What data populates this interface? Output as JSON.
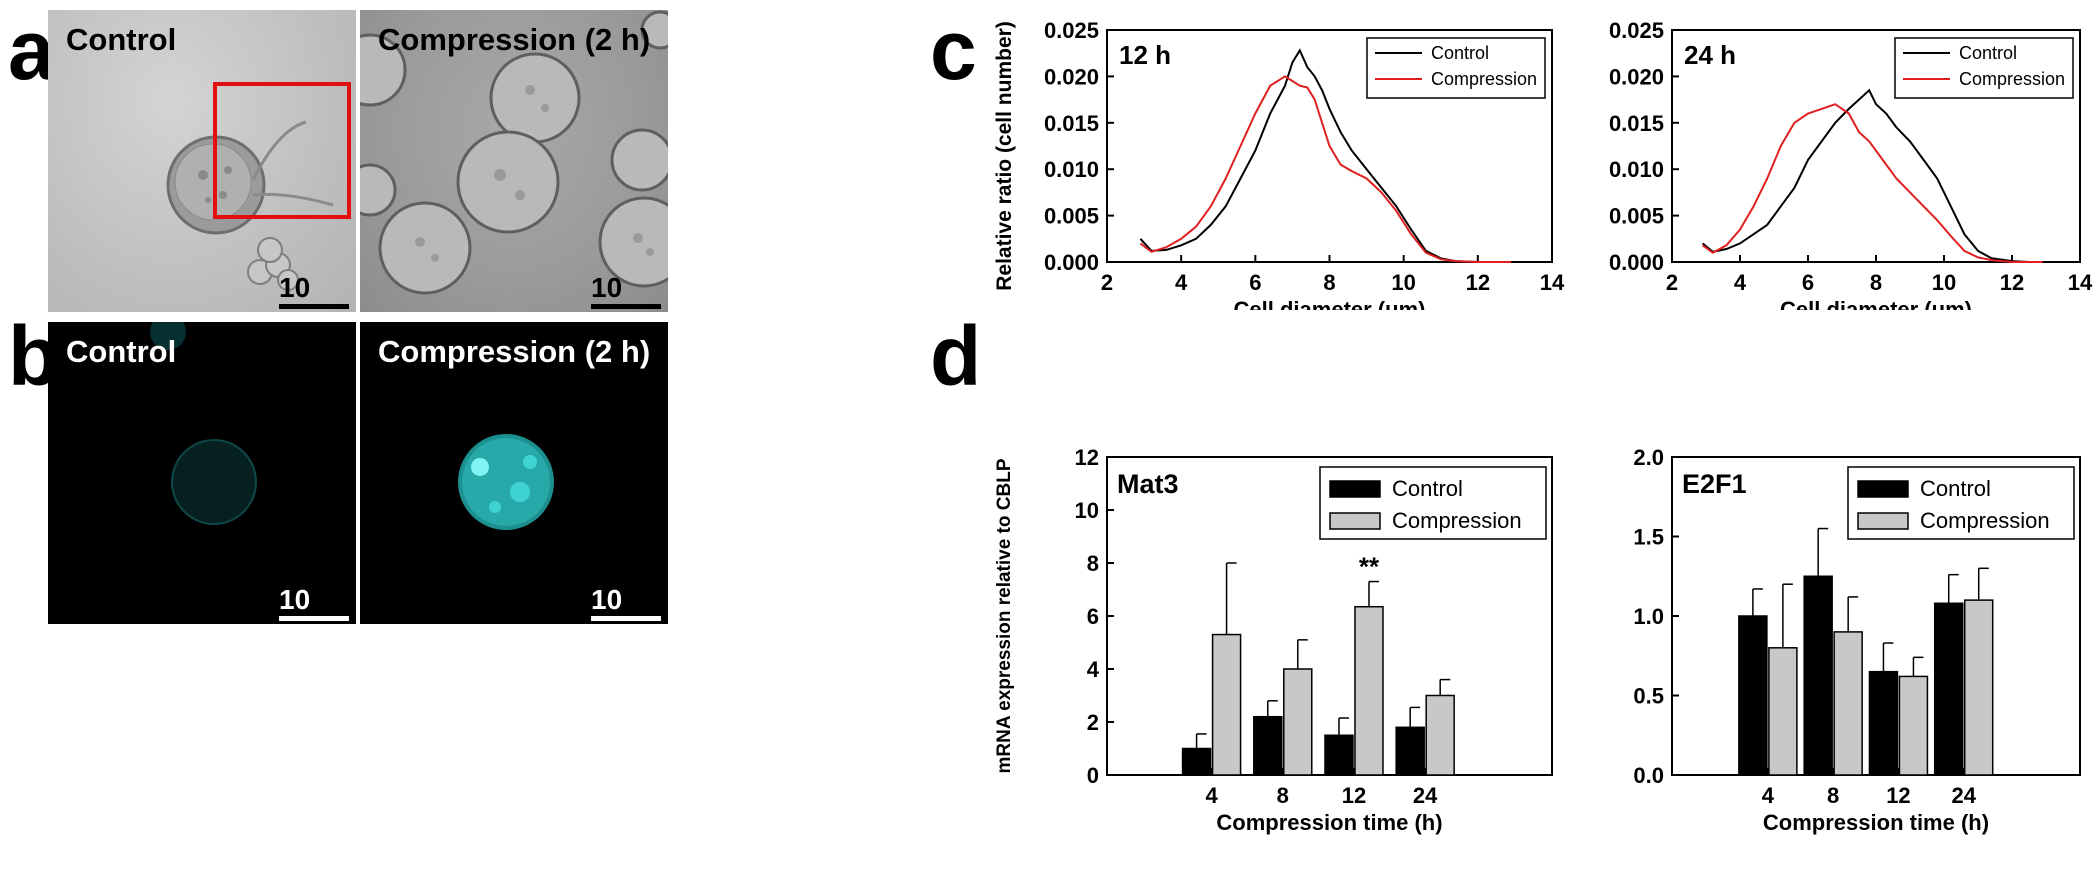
{
  "panel_letters": {
    "a": "a",
    "b": "b",
    "c": "c",
    "d": "d"
  },
  "panel_a": {
    "left_label": "Control",
    "right_label": "Compression (2 h)",
    "scale_bar": "10 µm",
    "highlight_color": "#e01010"
  },
  "panel_b": {
    "left_label": "Control",
    "right_label": "Compression (2 h)",
    "scale_bar": "10 µm",
    "stain_color": "#3fd3d3"
  },
  "chart_data": [
    {
      "id": "c_left",
      "type": "line",
      "panel_label": "12 h",
      "xlabel": "Cell diameter (um)",
      "ylabel": "Relative ratio (cell number)",
      "xlim": [
        2,
        14
      ],
      "ylim": [
        0,
        0.025
      ],
      "xticks": [
        "2",
        "4",
        "6",
        "8",
        "10",
        "12",
        "14"
      ],
      "yticks": [
        "0.000",
        "0.005",
        "0.010",
        "0.015",
        "0.020",
        "0.025"
      ],
      "legend_position": "top-right",
      "series": [
        {
          "name": "Control",
          "color": "#000000",
          "x": [
            2.9,
            3.2,
            3.6,
            4.0,
            4.4,
            4.8,
            5.2,
            5.6,
            6.0,
            6.4,
            6.8,
            7.0,
            7.2,
            7.4,
            7.6,
            7.8,
            8.0,
            8.3,
            8.6,
            9.0,
            9.4,
            9.8,
            10.2,
            10.6,
            11.0,
            11.4,
            12.0,
            12.5,
            12.9
          ],
          "y": [
            0.0025,
            0.0012,
            0.0013,
            0.0018,
            0.0025,
            0.004,
            0.006,
            0.009,
            0.012,
            0.016,
            0.019,
            0.0215,
            0.0228,
            0.021,
            0.02,
            0.0185,
            0.0165,
            0.014,
            0.012,
            0.01,
            0.008,
            0.006,
            0.0035,
            0.0012,
            0.0004,
            0.0001,
            0.0,
            0.0,
            0.0
          ]
        },
        {
          "name": "Compression",
          "color": "#e02020",
          "x": [
            2.9,
            3.2,
            3.6,
            4.0,
            4.4,
            4.8,
            5.2,
            5.6,
            6.0,
            6.4,
            6.8,
            7.0,
            7.2,
            7.4,
            7.6,
            7.8,
            8.0,
            8.3,
            8.6,
            9.0,
            9.4,
            9.8,
            10.2,
            10.6,
            11.0,
            11.4,
            12.0,
            12.5,
            12.9
          ],
          "y": [
            0.002,
            0.0011,
            0.0016,
            0.0025,
            0.0038,
            0.006,
            0.009,
            0.0125,
            0.016,
            0.019,
            0.02,
            0.0195,
            0.019,
            0.0188,
            0.0175,
            0.015,
            0.0125,
            0.0105,
            0.0098,
            0.009,
            0.0075,
            0.0055,
            0.003,
            0.001,
            0.0003,
            0.0001,
            0.0,
            0.0,
            0.0
          ]
        }
      ]
    },
    {
      "id": "c_right",
      "type": "line",
      "panel_label": "24 h",
      "xlabel": "Cell diameter (um)",
      "ylabel": "",
      "xlim": [
        2,
        14
      ],
      "ylim": [
        0,
        0.025
      ],
      "xticks": [
        "2",
        "4",
        "6",
        "8",
        "10",
        "12",
        "14"
      ],
      "yticks": [
        "0.000",
        "0.005",
        "0.010",
        "0.015",
        "0.020",
        "0.025"
      ],
      "legend_position": "top-right",
      "series": [
        {
          "name": "Control",
          "color": "#000000",
          "x": [
            2.9,
            3.2,
            3.6,
            4.0,
            4.4,
            4.8,
            5.2,
            5.6,
            6.0,
            6.4,
            6.8,
            7.2,
            7.5,
            7.8,
            8.0,
            8.3,
            8.6,
            9.0,
            9.4,
            9.8,
            10.2,
            10.6,
            11.0,
            11.4,
            12.0,
            12.5,
            12.9
          ],
          "y": [
            0.002,
            0.0011,
            0.0014,
            0.002,
            0.003,
            0.004,
            0.006,
            0.008,
            0.011,
            0.013,
            0.015,
            0.0165,
            0.0175,
            0.0185,
            0.017,
            0.016,
            0.0145,
            0.013,
            0.011,
            0.009,
            0.006,
            0.003,
            0.0012,
            0.0004,
            0.0001,
            0.0,
            0.0
          ]
        },
        {
          "name": "Compression",
          "color": "#e02020",
          "x": [
            2.9,
            3.2,
            3.6,
            4.0,
            4.4,
            4.8,
            5.2,
            5.6,
            6.0,
            6.4,
            6.8,
            7.2,
            7.5,
            7.8,
            8.0,
            8.3,
            8.6,
            9.0,
            9.4,
            9.8,
            10.2,
            10.6,
            11.0,
            11.4,
            12.0,
            12.5,
            12.9
          ],
          "y": [
            0.0018,
            0.001,
            0.0018,
            0.0035,
            0.006,
            0.009,
            0.0125,
            0.015,
            0.016,
            0.0165,
            0.017,
            0.016,
            0.014,
            0.013,
            0.012,
            0.0105,
            0.009,
            0.0075,
            0.006,
            0.0045,
            0.0028,
            0.0012,
            0.0005,
            0.0002,
            0.0,
            0.0,
            0.0
          ]
        }
      ]
    },
    {
      "id": "d_left",
      "type": "bar",
      "panel_label": "Mat3",
      "xlabel": "Compression time (h)",
      "ylabel": "mRNA expression relative to CBLP",
      "categories": [
        "4",
        "8",
        "12",
        "24"
      ],
      "ylim": [
        0,
        12
      ],
      "yticks": [
        "0",
        "2",
        "4",
        "6",
        "8",
        "10",
        "12"
      ],
      "legend_position": "top-right",
      "series": [
        {
          "name": "Control",
          "color": "#000000",
          "values": [
            1.0,
            2.2,
            1.5,
            1.8
          ],
          "errors": [
            0.55,
            0.6,
            0.65,
            0.75
          ]
        },
        {
          "name": "Compression",
          "color": "#c8c8c8",
          "values": [
            5.3,
            4.0,
            6.35,
            3.0
          ],
          "errors": [
            2.7,
            1.1,
            0.95,
            0.6
          ]
        }
      ],
      "annotations": [
        {
          "category": "12",
          "series": "Compression",
          "text": "**"
        }
      ]
    },
    {
      "id": "d_right",
      "type": "bar",
      "panel_label": "E2F1",
      "xlabel": "Compression time (h)",
      "ylabel": "",
      "categories": [
        "4",
        "8",
        "12",
        "24"
      ],
      "ylim": [
        0,
        2.0
      ],
      "yticks": [
        "0.0",
        "0.5",
        "1.0",
        "1.5",
        "2.0"
      ],
      "legend_position": "top-right",
      "series": [
        {
          "name": "Control",
          "color": "#000000",
          "values": [
            1.0,
            1.25,
            0.65,
            1.08
          ],
          "errors": [
            0.17,
            0.3,
            0.18,
            0.18
          ]
        },
        {
          "name": "Compression",
          "color": "#c8c8c8",
          "values": [
            0.8,
            0.9,
            0.62,
            1.1
          ],
          "errors": [
            0.4,
            0.22,
            0.12,
            0.2
          ]
        }
      ],
      "annotations": []
    }
  ]
}
